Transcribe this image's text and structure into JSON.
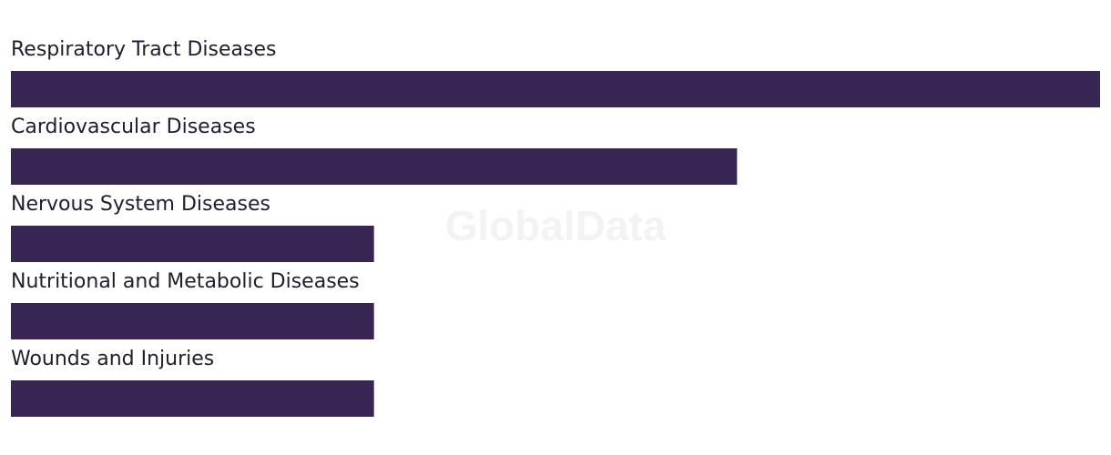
{
  "chart_data": {
    "type": "bar",
    "orientation": "horizontal",
    "watermark": "GlobalData",
    "categories": [
      "Respiratory Tract Diseases",
      "Cardiovascular Diseases",
      "Nervous System Diseases",
      "Nutritional and Metabolic Diseases",
      "Wounds and Injuries"
    ],
    "values": [
      3,
      2,
      1,
      1,
      1
    ],
    "color": "#372554",
    "xlim": [
      0,
      3
    ]
  }
}
